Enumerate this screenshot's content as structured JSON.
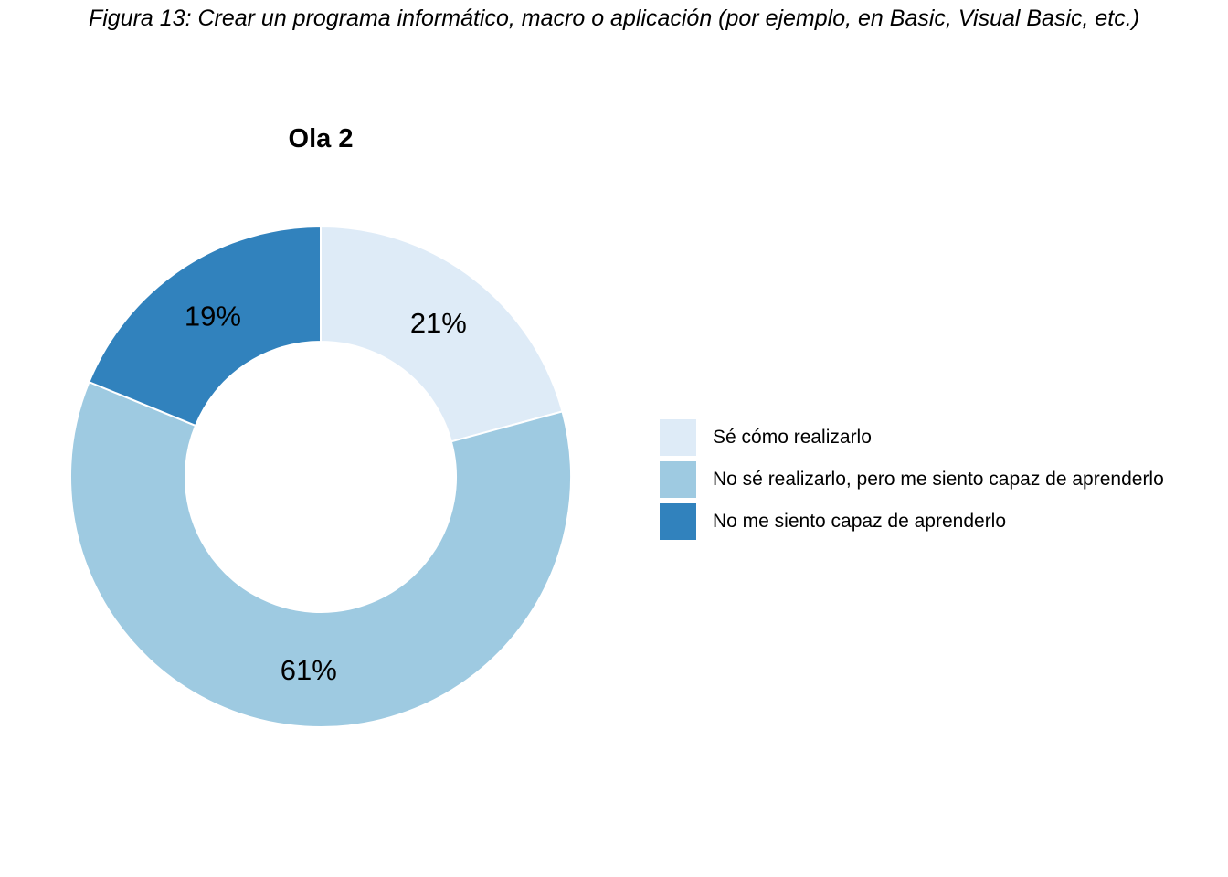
{
  "figure_caption": "Figura 13: Crear un programa informático, macro o aplicación (por ejemplo, en Basic, Visual Basic, etc.)",
  "chart_data": {
    "type": "pie",
    "donut": true,
    "title": "Ola 2",
    "categories": [
      "Sé cómo realizarlo",
      "No sé realizarlo, pero me siento capaz de aprenderlo",
      "No me siento capaz de aprenderlo"
    ],
    "values": [
      21,
      61,
      19
    ],
    "labels": [
      "21%",
      "61%",
      "19%"
    ],
    "colors": [
      "#deebf7",
      "#9ecae1",
      "#3182bd"
    ],
    "legend_position": "right"
  }
}
